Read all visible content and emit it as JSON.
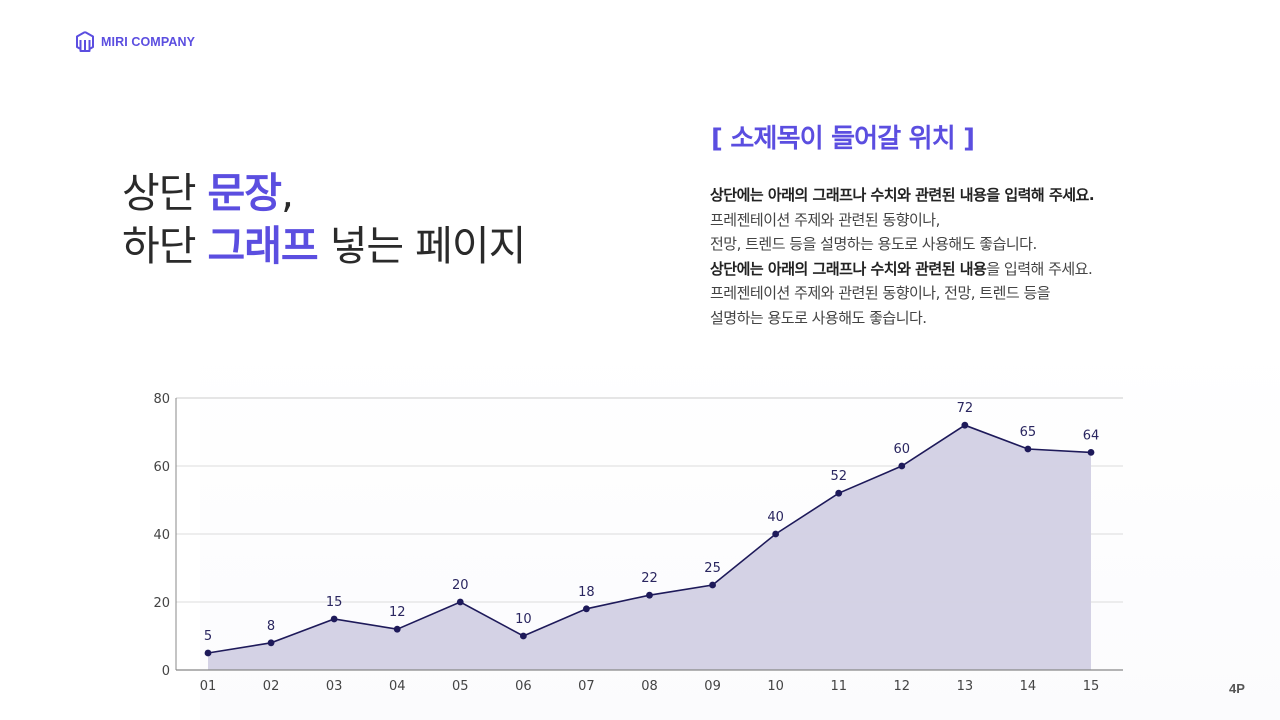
{
  "header": {
    "logo_text": "MIRI COMPANY",
    "logo_icon": "building-cube-icon"
  },
  "headline": {
    "line1_prefix": "상단 ",
    "line1_accent": "문장",
    "line1_suffix": ",",
    "line2_prefix": "하단 ",
    "line2_accent": "그래프",
    "line2_suffix": " 넣는 페이지"
  },
  "subtitle": "[ 소제목이 들어갈 위치 ]",
  "body": {
    "line1_bold": "상단에는 아래의 그래프나 수치와 관련된 내용을 입력해 주세요.",
    "line2": "프레젠테이션 주제와 관련된 동향이나,",
    "line3": "전망, 트렌드 등을 설명하는 용도로 사용해도 좋습니다.",
    "line4_bold": "상단에는 아래의 그래프나 수치와 관련된 내용",
    "line4_rest": "을 입력해 주세요.",
    "line5": "프레젠테이션 주제와 관련된 동향이나, 전망, 트렌드 등을",
    "line6": "설명하는 용도로 사용해도 좋습니다."
  },
  "page_number": "4P",
  "colors": {
    "accent": "#5b4ee0",
    "line": "#1e1a5a",
    "area_fill": "#d2d0e4",
    "grid": "#dcdcdc",
    "axis": "#888888"
  },
  "chart_data": {
    "type": "area",
    "title": "",
    "xlabel": "",
    "ylabel": "",
    "categories": [
      "01",
      "02",
      "03",
      "04",
      "05",
      "06",
      "07",
      "08",
      "09",
      "10",
      "11",
      "12",
      "13",
      "14",
      "15"
    ],
    "values": [
      5,
      8,
      15,
      12,
      20,
      10,
      18,
      22,
      25,
      40,
      52,
      60,
      72,
      65,
      64
    ],
    "ylim": [
      0,
      80
    ],
    "yticks": [
      0,
      20,
      40,
      60,
      80
    ],
    "grid": true,
    "data_labels": true,
    "markers": true,
    "legend": null
  }
}
